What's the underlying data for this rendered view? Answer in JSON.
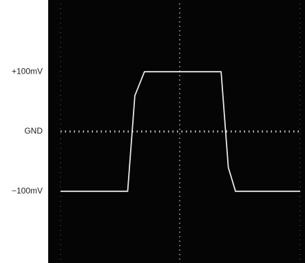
{
  "chart_data": {
    "type": "line",
    "x": [
      0,
      2.8,
      3.1,
      3.5,
      6.7,
      7.0,
      7.3,
      10
    ],
    "series": [
      {
        "color": "#e8e8e8",
        "values": [
          -100,
          -100,
          60,
          100,
          100,
          -60,
          -100,
          -100
        ]
      }
    ],
    "xlim": [
      0,
      10
    ],
    "ylim": [
      -220,
      220
    ],
    "yticks": [
      {
        "value": 100,
        "label": "+100mV"
      },
      {
        "value": 0,
        "label": "GND"
      },
      {
        "value": -100,
        "label": "−100mV"
      }
    ],
    "grid": true
  }
}
